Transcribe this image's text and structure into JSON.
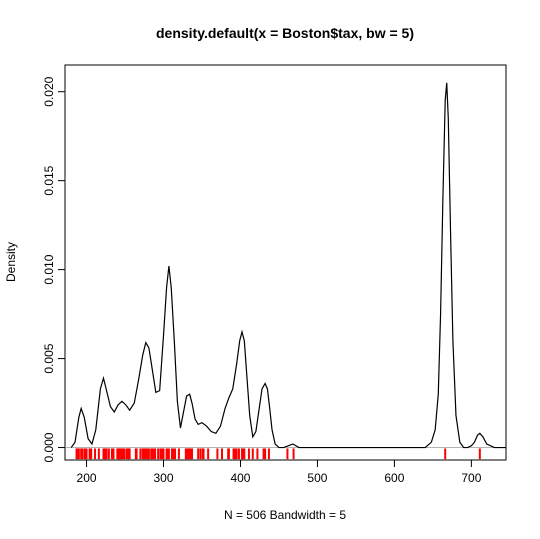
{
  "chart_data": {
    "type": "line",
    "title": "density.default(x = Boston$tax, bw = 5)",
    "xlabel": "N = 506   Bandwidth = 5",
    "ylabel": "Density",
    "xlim": [
      172,
      745
    ],
    "ylim": [
      -0.0007,
      0.0215
    ],
    "x_ticks": [
      "200",
      "300",
      "400",
      "500",
      "600",
      "700"
    ],
    "x_tick_values": [
      200,
      300,
      400,
      500,
      600,
      700
    ],
    "y_ticks": [
      "0.000",
      "0.005",
      "0.010",
      "0.015",
      "0.020"
    ],
    "y_tick_values": [
      0.0,
      0.005,
      0.01,
      0.015,
      0.02
    ],
    "grid": false,
    "legend": "none",
    "series": [
      {
        "color": "#000000",
        "x": [
          180,
          185,
          190,
          193,
          197,
          202,
          207,
          212,
          218,
          222,
          226,
          231,
          236,
          241,
          246,
          251,
          256,
          262,
          268,
          273,
          277,
          281,
          285,
          290,
          295,
          300,
          304,
          307,
          310,
          314,
          318,
          322,
          326,
          330,
          334,
          337,
          341,
          345,
          350,
          356,
          362,
          368,
          374,
          380,
          385,
          390,
          395,
          399,
          402,
          405,
          408,
          412,
          416,
          420,
          424,
          428,
          432,
          435,
          438,
          441,
          445,
          450,
          456,
          462,
          468,
          472,
          476,
          482,
          500,
          550,
          600,
          640,
          648,
          653,
          657,
          660,
          663,
          666,
          668,
          670,
          673,
          676,
          680,
          685,
          690,
          695,
          700,
          704,
          708,
          711,
          715,
          720,
          730,
          745
        ],
        "y": [
          0.0,
          0.0003,
          0.0017,
          0.0022,
          0.0017,
          0.0005,
          0.0002,
          0.001,
          0.0033,
          0.0039,
          0.0032,
          0.0023,
          0.002,
          0.0024,
          0.0026,
          0.0024,
          0.0021,
          0.0025,
          0.0039,
          0.0052,
          0.0059,
          0.0056,
          0.0045,
          0.0031,
          0.0032,
          0.0063,
          0.009,
          0.0102,
          0.009,
          0.006,
          0.0026,
          0.0011,
          0.002,
          0.0029,
          0.003,
          0.0025,
          0.0016,
          0.0013,
          0.0014,
          0.0012,
          0.0009,
          0.0008,
          0.0012,
          0.0022,
          0.0028,
          0.0033,
          0.0047,
          0.006,
          0.0065,
          0.006,
          0.0042,
          0.0018,
          0.0006,
          0.0009,
          0.0021,
          0.0033,
          0.0036,
          0.0033,
          0.0022,
          0.001,
          0.0002,
          0.0,
          0.0,
          0.0001,
          0.0002,
          0.0001,
          0.0,
          0.0,
          0.0,
          0.0,
          0.0,
          0.0,
          0.0003,
          0.001,
          0.003,
          0.0075,
          0.014,
          0.0195,
          0.0205,
          0.0185,
          0.012,
          0.006,
          0.0018,
          0.0003,
          0.0,
          0.0,
          0.0001,
          0.0003,
          0.0007,
          0.0008,
          0.0006,
          0.0002,
          0.0,
          0.0
        ]
      }
    ],
    "rug": {
      "color": "#ff0000",
      "x": [
        187,
        188,
        190,
        193,
        195,
        198,
        200,
        204,
        206,
        211,
        216,
        222,
        223,
        224,
        226,
        229,
        233,
        235,
        240,
        241,
        242,
        243,
        244,
        245,
        247,
        249,
        252,
        254,
        255,
        256,
        264,
        265,
        270,
        273,
        274,
        276,
        277,
        279,
        280,
        281,
        284,
        285,
        287,
        289,
        293,
        296,
        298,
        300,
        304,
        305,
        307,
        311,
        313,
        315,
        320,
        329,
        330,
        332,
        334,
        335,
        337,
        345,
        348,
        351,
        352,
        358,
        370,
        376,
        384,
        385,
        391,
        393,
        395,
        398,
        402,
        403,
        405,
        411,
        416,
        422,
        430,
        432,
        437,
        461,
        469,
        666,
        711
      ]
    }
  }
}
